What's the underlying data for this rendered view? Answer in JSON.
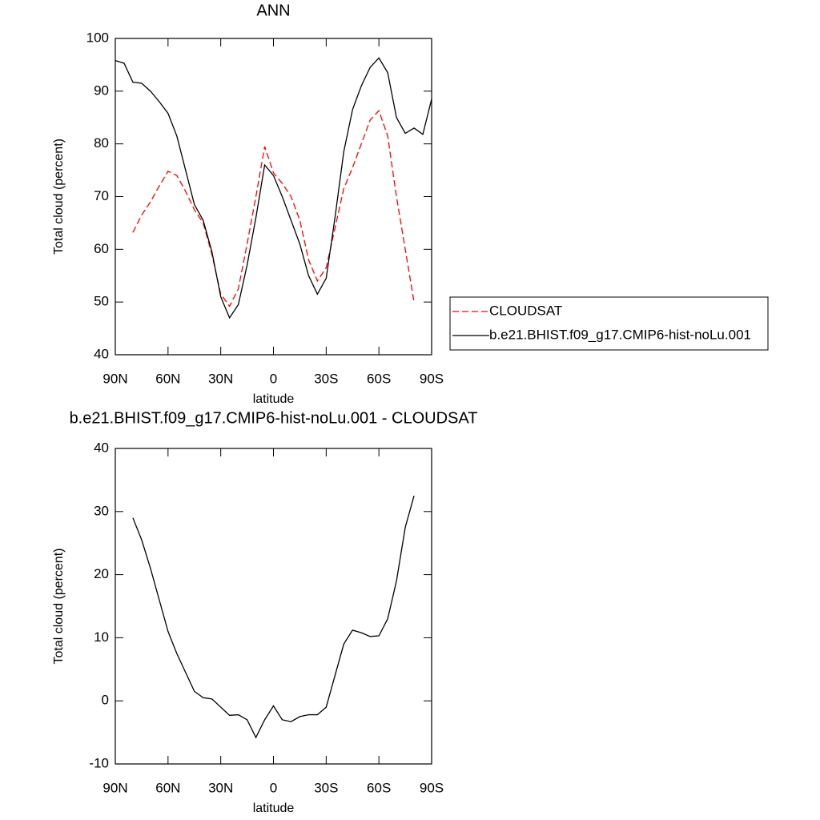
{
  "chart_data": [
    {
      "type": "line",
      "title": "ANN",
      "xlabel": "latitude",
      "ylabel": "Total cloud (percent)",
      "x": [
        90,
        85,
        80,
        75,
        70,
        65,
        60,
        55,
        50,
        45,
        40,
        35,
        30,
        25,
        20,
        15,
        10,
        5,
        0,
        -5,
        -10,
        -15,
        -20,
        -25,
        -30,
        -35,
        -40,
        -45,
        -50,
        -55,
        -60,
        -65,
        -70,
        -75,
        -80,
        -85,
        -90
      ],
      "series": [
        {
          "name": "CLOUDSAT",
          "color": "#ff0000",
          "dash": true,
          "values": [
            null,
            null,
            63.2,
            66.5,
            69.0,
            72.0,
            74.8,
            74.0,
            71.0,
            67.5,
            65.0,
            59.0,
            51.5,
            49.2,
            52.5,
            61.0,
            70.0,
            79.5,
            74.5,
            72.5,
            70.0,
            65.5,
            58.0,
            54.0,
            56.5,
            64.0,
            71.5,
            75.5,
            80.0,
            84.5,
            86.3,
            81.5,
            70.0,
            60.0,
            50.0,
            null,
            null
          ]
        },
        {
          "name": "b.e21.BHIST.f09_g17.CMIP6-hist-noLu.001",
          "color": "#000000",
          "dash": false,
          "values": [
            95.8,
            95.3,
            91.7,
            91.5,
            90.0,
            88.0,
            85.8,
            81.5,
            75.0,
            68.5,
            65.5,
            59.5,
            51.0,
            47.0,
            49.5,
            57.0,
            66.0,
            76.0,
            74.0,
            70.0,
            65.5,
            61.0,
            55.0,
            51.5,
            54.5,
            66.0,
            78.5,
            86.5,
            91.0,
            94.5,
            96.3,
            93.5,
            85.0,
            82.0,
            83.0,
            81.8,
            88.5
          ]
        }
      ],
      "xlim": [
        90,
        -90
      ],
      "xticks": [
        {
          "value": 90,
          "label": "90N"
        },
        {
          "value": 60,
          "label": "60N"
        },
        {
          "value": 30,
          "label": "30N"
        },
        0,
        {
          "value": -30,
          "label": "30S"
        },
        {
          "value": -60,
          "label": "60S"
        },
        {
          "value": -90,
          "label": "90S"
        }
      ],
      "ylim": [
        40,
        100
      ],
      "yticks": [
        40,
        50,
        60,
        70,
        80,
        90,
        100
      ],
      "legend": "right"
    },
    {
      "type": "line",
      "title": "b.e21.BHIST.f09_g17.CMIP6-hist-noLu.001 - CLOUDSAT",
      "xlabel": "latitude",
      "ylabel": "Total cloud (percent)",
      "x": [
        80,
        75,
        70,
        65,
        60,
        55,
        50,
        45,
        40,
        35,
        30,
        25,
        20,
        15,
        10,
        5,
        0,
        -5,
        -10,
        -15,
        -20,
        -25,
        -30,
        -35,
        -40,
        -45,
        -50,
        -55,
        -60,
        -65,
        -70,
        -75,
        -80
      ],
      "color": "#000000",
      "values": [
        29.0,
        25.5,
        21.0,
        16.0,
        11.0,
        7.5,
        4.5,
        1.5,
        0.5,
        0.3,
        -1.0,
        -2.3,
        -2.2,
        -3.0,
        -5.8,
        -3.0,
        -0.8,
        -3.0,
        -3.3,
        -2.5,
        -2.2,
        -2.2,
        -1.0,
        4.0,
        9.0,
        11.2,
        10.8,
        10.2,
        10.3,
        13.0,
        19.0,
        27.5,
        32.5
      ],
      "xlim": [
        90,
        -90
      ],
      "xticks": [
        {
          "value": 90,
          "label": "90N"
        },
        {
          "value": 60,
          "label": "60N"
        },
        {
          "value": 30,
          "label": "30N"
        },
        0,
        {
          "value": -30,
          "label": "30S"
        },
        {
          "value": -60,
          "label": "60S"
        },
        {
          "value": -90,
          "label": "90S"
        }
      ],
      "ylim": [
        -10,
        40
      ],
      "yticks": [
        -10,
        0,
        10,
        20,
        30,
        40
      ]
    }
  ]
}
